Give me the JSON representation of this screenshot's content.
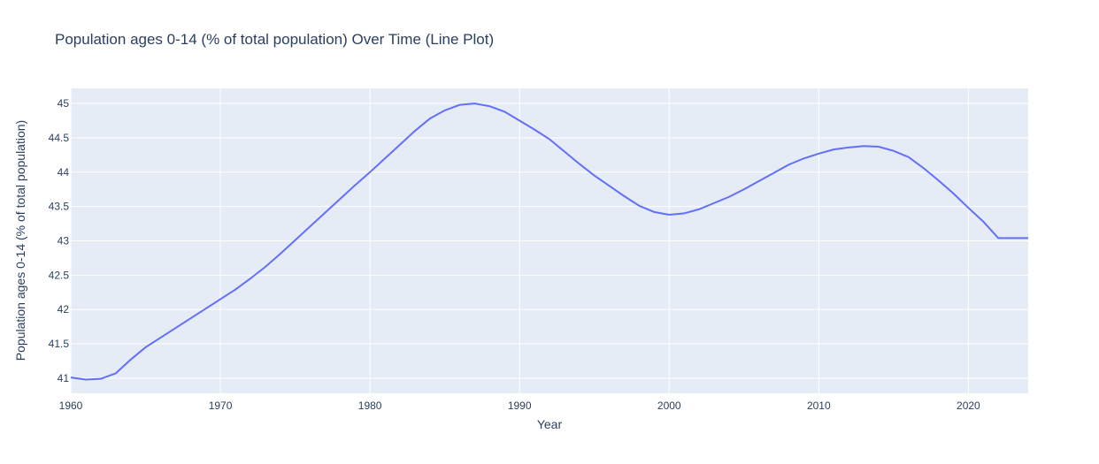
{
  "chart_data": {
    "type": "line",
    "title": "Population ages 0-14 (% of total population) Over Time (Line Plot)",
    "xlabel": "Year",
    "ylabel": "Population ages 0-14 (% of total population)",
    "xlim": [
      1960,
      2024
    ],
    "ylim": [
      40.78,
      45.22
    ],
    "xticks": [
      1960,
      1970,
      1980,
      1990,
      2000,
      2010,
      2020
    ],
    "yticks": [
      41,
      41.5,
      42,
      42.5,
      43,
      43.5,
      44,
      44.5,
      45
    ],
    "grid": true,
    "colors": {
      "line": "#636efa",
      "plot_bg": "#e5ecf6",
      "grid": "#ffffff",
      "text": "#2a3f5f"
    },
    "series": [
      {
        "x": [
          1960,
          1961,
          1962,
          1963,
          1964,
          1965,
          1966,
          1967,
          1968,
          1969,
          1970,
          1971,
          1972,
          1973,
          1974,
          1975,
          1976,
          1977,
          1978,
          1979,
          1980,
          1981,
          1982,
          1983,
          1984,
          1985,
          1986,
          1987,
          1988,
          1989,
          1990,
          1991,
          1992,
          1993,
          1994,
          1995,
          1996,
          1997,
          1998,
          1999,
          2000,
          2001,
          2002,
          2003,
          2004,
          2005,
          2006,
          2007,
          2008,
          2009,
          2010,
          2011,
          2012,
          2013,
          2014,
          2015,
          2016,
          2017,
          2018,
          2019,
          2020,
          2021,
          2022,
          2023,
          2024
        ],
        "values": [
          41.01,
          40.98,
          40.99,
          41.07,
          41.27,
          41.45,
          41.59,
          41.73,
          41.87,
          42.01,
          42.15,
          42.29,
          42.45,
          42.62,
          42.81,
          43.01,
          43.21,
          43.41,
          43.61,
          43.81,
          44.0,
          44.2,
          44.4,
          44.6,
          44.78,
          44.9,
          44.98,
          45.0,
          44.96,
          44.88,
          44.75,
          44.62,
          44.48,
          44.3,
          44.12,
          43.95,
          43.8,
          43.65,
          43.51,
          43.42,
          43.38,
          43.4,
          43.46,
          43.55,
          43.64,
          43.75,
          43.87,
          43.99,
          44.11,
          44.2,
          44.27,
          44.33,
          44.36,
          44.38,
          44.37,
          44.31,
          44.22,
          44.06,
          43.88,
          43.69,
          43.48,
          43.28,
          43.04,
          43.04,
          43.04
        ]
      }
    ]
  }
}
